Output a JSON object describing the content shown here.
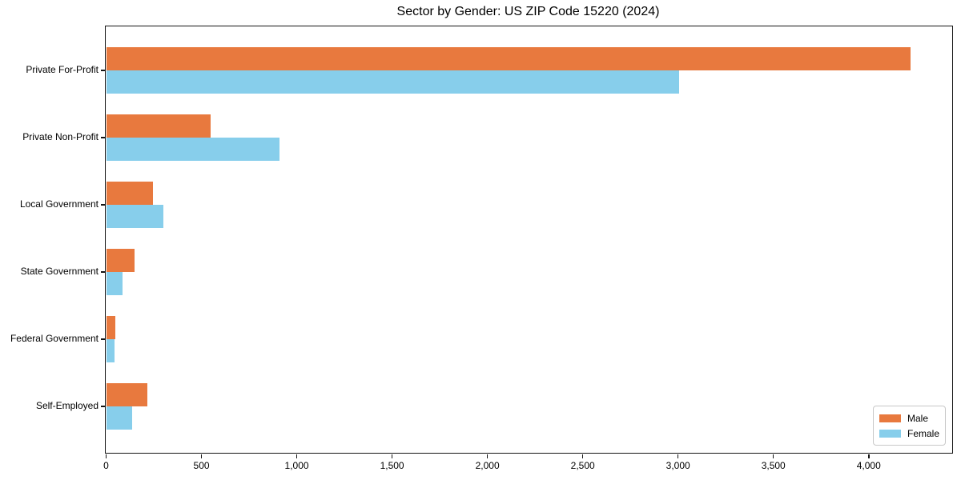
{
  "title": "Sector by Gender: US ZIP Code 15220 (2024)",
  "colors": {
    "male": "#E8793E",
    "female": "#87CEEB",
    "axis": "#141414",
    "background": "#FFFFFF",
    "legend_border": "#C8C8C8"
  },
  "chart_data": {
    "type": "bar",
    "orientation": "horizontal",
    "title": "Sector by Gender: US ZIP Code 15220 (2024)",
    "xlabel": "",
    "ylabel": "",
    "categories": [
      "Private For-Profit",
      "Private Non-Profit",
      "Local Government",
      "State Government",
      "Federal Government",
      "Self-Employed"
    ],
    "series": [
      {
        "name": "Male",
        "color": "#E8793E",
        "values": [
          4220,
          550,
          245,
          150,
          50,
          215
        ]
      },
      {
        "name": "Female",
        "color": "#87CEEB",
        "values": [
          3005,
          910,
          300,
          85,
          45,
          135
        ]
      }
    ],
    "xlim": [
      0,
      4440
    ],
    "xticks": [
      0,
      500,
      1000,
      1500,
      2000,
      2500,
      3000,
      3500,
      4000
    ],
    "xtick_labels": [
      "0",
      "500",
      "1,000",
      "1,500",
      "2,000",
      "2,500",
      "3,000",
      "3,500",
      "4,000"
    ],
    "grid": false,
    "legend": {
      "position": "lower right",
      "entries": [
        "Male",
        "Female"
      ]
    }
  }
}
